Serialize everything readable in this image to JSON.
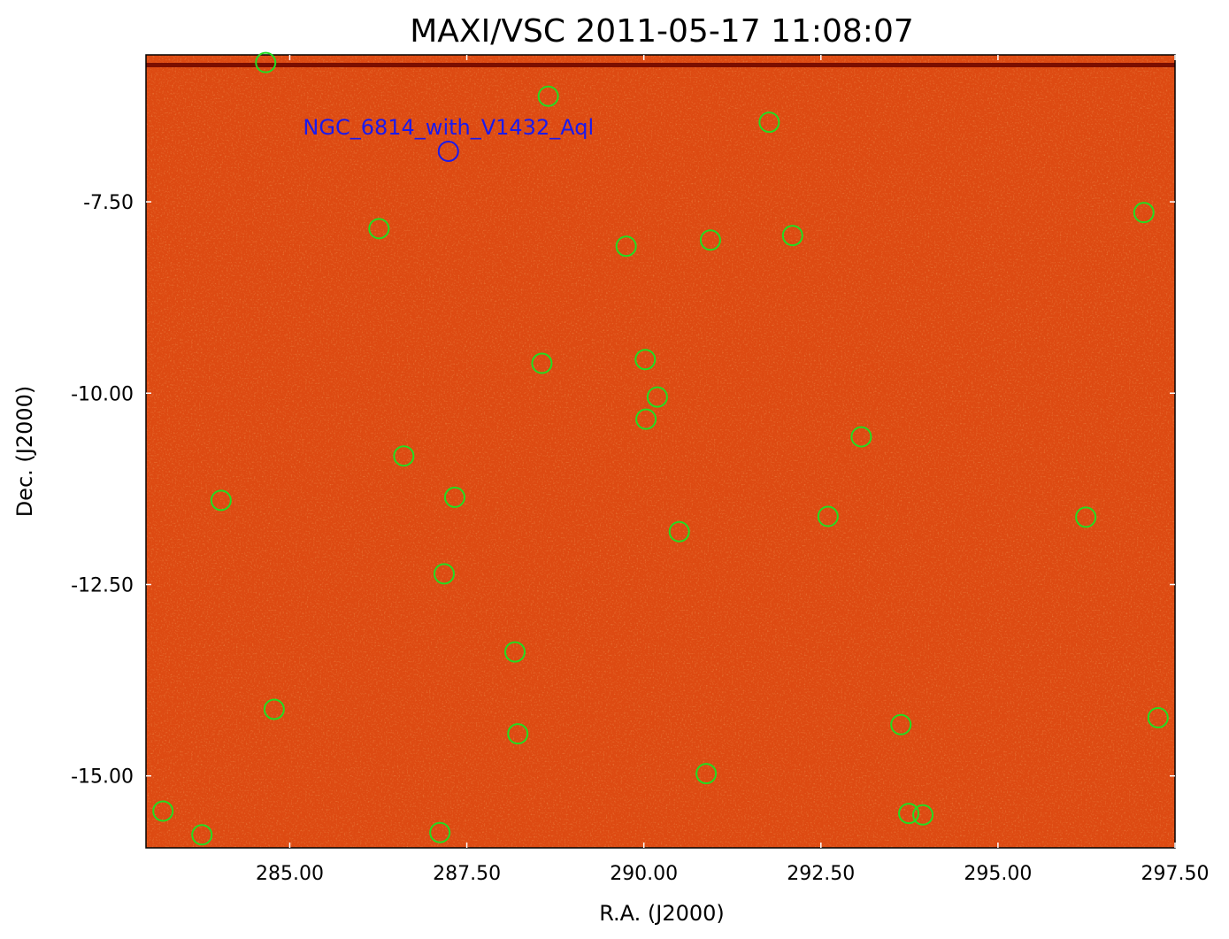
{
  "chart_data": {
    "type": "scatter",
    "title": "MAXI/VSC 2011-05-17 11:08:07",
    "x_label": "R.A. (J2000)",
    "y_label": "Dec. (J2000)",
    "xlim": [
      282.97,
      297.5
    ],
    "ylim": [
      -15.94,
      -5.58
    ],
    "xticks": [
      {
        "value": 285,
        "label": "285.00"
      },
      {
        "value": 287.5,
        "label": "287.50"
      },
      {
        "value": 290,
        "label": "290.00"
      },
      {
        "value": 292.5,
        "label": "292.50"
      },
      {
        "value": 295,
        "label": "295.00"
      },
      {
        "value": 297.5,
        "label": "297.50"
      }
    ],
    "yticks": [
      {
        "value": -7.5,
        "label": "-7.50"
      },
      {
        "value": -10,
        "label": "-10.00"
      },
      {
        "value": -12.5,
        "label": "-12.50"
      },
      {
        "value": -15,
        "label": "-15.00"
      }
    ],
    "series": [
      {
        "color": "#22dd22",
        "x": [
          284.66,
          288.65,
          291.77,
          286.26,
          289.75,
          290.94,
          292.1,
          297.06,
          288.56,
          290.02,
          290.19,
          290.03,
          293.07,
          286.61,
          284.03,
          287.33,
          290.5,
          292.6,
          296.24,
          287.18,
          288.18,
          284.78,
          288.22,
          293.63,
          297.26,
          290.88,
          283.21,
          283.76,
          287.12,
          293.74,
          293.94
        ],
        "values": [
          -5.68,
          -6.12,
          -6.46,
          -7.85,
          -8.08,
          -8.0,
          -7.94,
          -7.64,
          -9.61,
          -9.56,
          -10.05,
          -10.34,
          -10.57,
          -10.82,
          -11.4,
          -11.36,
          -11.81,
          -11.61,
          -11.62,
          -12.36,
          -13.38,
          -14.13,
          -14.45,
          -14.33,
          -14.24,
          -14.97,
          -15.46,
          -15.77,
          -15.74,
          -15.49,
          -15.51
        ]
      },
      {
        "color": "#1a1aee",
        "x": [
          287.24
        ],
        "values": [
          -6.84
        ],
        "labels": [
          "NGC_6814_with_V1432_Aql"
        ]
      }
    ]
  }
}
